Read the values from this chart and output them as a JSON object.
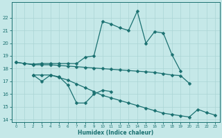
{
  "xlabel": "Humidex (Indice chaleur)",
  "bg_color": "#c5e8e8",
  "line_color": "#1a7070",
  "xlim": [
    -0.5,
    23.5
  ],
  "ylim": [
    13.8,
    23.2
  ],
  "xticks": [
    0,
    1,
    2,
    3,
    4,
    5,
    6,
    7,
    8,
    9,
    10,
    11,
    12,
    13,
    14,
    15,
    16,
    17,
    18,
    19,
    20,
    21,
    22,
    23
  ],
  "yticks": [
    14,
    15,
    16,
    17,
    18,
    19,
    20,
    21,
    22
  ],
  "grid_color": "#aad4d4",
  "line1_y": [
    18.5,
    18.4,
    18.35,
    18.4,
    18.4,
    18.4,
    18.4,
    18.4,
    18.9,
    19.0,
    21.7,
    21.5,
    21.2,
    21.0,
    22.5,
    20.0,
    20.9,
    20.8,
    19.1,
    17.8,
    null,
    null,
    null,
    null
  ],
  "line2_y": [
    18.5,
    18.4,
    18.3,
    18.3,
    18.3,
    18.25,
    18.2,
    18.15,
    18.1,
    18.05,
    18.0,
    17.95,
    17.9,
    17.85,
    17.8,
    17.75,
    17.7,
    17.6,
    17.5,
    17.45,
    16.85,
    null,
    null,
    null
  ],
  "line3_y": [
    null,
    null,
    17.5,
    17.0,
    17.5,
    17.35,
    16.7,
    15.3,
    15.3,
    16.0,
    16.3,
    16.2,
    null,
    null,
    null,
    null,
    null,
    null,
    null,
    null,
    null,
    null,
    null,
    null
  ],
  "line4_y": [
    null,
    null,
    17.5,
    17.5,
    17.5,
    17.3,
    17.1,
    16.8,
    16.5,
    16.2,
    15.9,
    15.7,
    15.5,
    15.3,
    15.1,
    14.9,
    14.7,
    14.5,
    14.4,
    14.3,
    14.2,
    14.8,
    14.55,
    14.35
  ]
}
